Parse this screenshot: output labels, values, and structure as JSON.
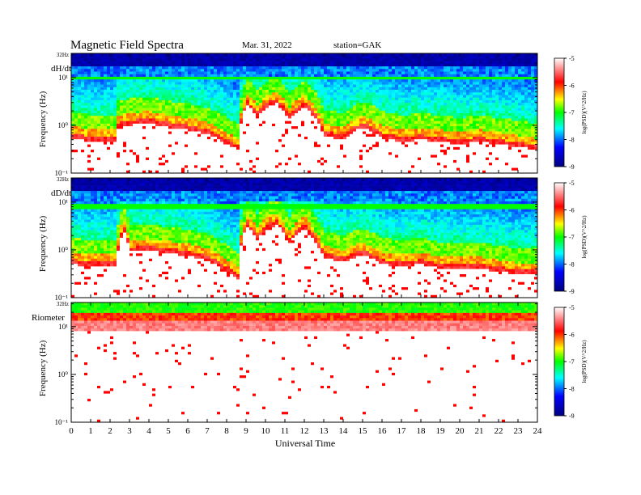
{
  "header": {
    "title": "Magnetic  Field  Spectra",
    "date": "Mar. 31, 2022",
    "station": "station=GAK"
  },
  "colors": {
    "scale_bottom": "#00007f",
    "scale_mid_low": "#00ffff",
    "scale_mid": "#00ff00",
    "scale_mid_high": "#ffff00",
    "scale_high": "#ff0000",
    "scale_top": "#ffffff",
    "frame": "#000000"
  },
  "chart_data": {
    "type": "heatmap",
    "xlabel": "Universal Time",
    "x_ticks": [
      "0",
      "1",
      "2",
      "3",
      "4",
      "5",
      "6",
      "7",
      "8",
      "9",
      "10",
      "11",
      "12",
      "13",
      "14",
      "15",
      "16",
      "17",
      "18",
      "19",
      "20",
      "21",
      "22",
      "23",
      "24"
    ],
    "xlim": [
      0,
      24
    ],
    "colorbar": {
      "label": "log(PSD)(V^2/Hz)",
      "ticks": [
        "-5",
        "-6",
        "-7",
        "-8",
        "-9"
      ],
      "range": [
        -9,
        -5
      ]
    },
    "panels": [
      {
        "name": "dH/dt",
        "ylabel": "Frequency  (Hz)",
        "top_label": "32Hz",
        "y_ticks": [
          "10¹",
          "10⁰",
          "10⁻¹"
        ],
        "ylim_hz": [
          0.1,
          32
        ],
        "noise_line_hz": 10,
        "noise_cutoff": [
          [
            0,
            0.55
          ],
          [
            1,
            0.45
          ],
          [
            2.3,
            0.45
          ],
          [
            2.4,
            0.9
          ],
          [
            3,
            1.0
          ],
          [
            4,
            1.1
          ],
          [
            5,
            0.9
          ],
          [
            6,
            0.8
          ],
          [
            7,
            0.65
          ],
          [
            8,
            0.4
          ],
          [
            8.6,
            0.3
          ],
          [
            9.05,
            2.6
          ],
          [
            9.6,
            1.5
          ],
          [
            10.2,
            2.5
          ],
          [
            10.6,
            2.8
          ],
          [
            11.2,
            1.3
          ],
          [
            12,
            2.4
          ],
          [
            12.5,
            1.5
          ],
          [
            13,
            0.6
          ],
          [
            14,
            0.5
          ],
          [
            15,
            0.9
          ],
          [
            16,
            0.55
          ],
          [
            17,
            0.45
          ],
          [
            18,
            0.5
          ],
          [
            19,
            0.45
          ],
          [
            20,
            0.4
          ],
          [
            21,
            0.45
          ],
          [
            22,
            0.4
          ],
          [
            23,
            0.35
          ],
          [
            24,
            0.3
          ]
        ]
      },
      {
        "name": "dD/dt",
        "ylabel": "Frequency  (Hz)",
        "top_label": "32Hz",
        "y_ticks": [
          "10¹",
          "10⁰",
          "10⁻¹"
        ],
        "ylim_hz": [
          0.1,
          32
        ],
        "noise_line_hz": 8,
        "noise_cutoff": [
          [
            0,
            0.5
          ],
          [
            1,
            0.45
          ],
          [
            2.3,
            0.45
          ],
          [
            2.4,
            0.9
          ],
          [
            2.7,
            2.5
          ],
          [
            3,
            0.9
          ],
          [
            4,
            0.95
          ],
          [
            5,
            0.85
          ],
          [
            6,
            0.75
          ],
          [
            7,
            0.6
          ],
          [
            8,
            0.35
          ],
          [
            8.6,
            0.25
          ],
          [
            9.05,
            3.0
          ],
          [
            9.6,
            1.6
          ],
          [
            10.2,
            2.9
          ],
          [
            10.6,
            3.3
          ],
          [
            11.2,
            1.3
          ],
          [
            12,
            2.8
          ],
          [
            12.5,
            1.5
          ],
          [
            13,
            0.7
          ],
          [
            14,
            0.55
          ],
          [
            15,
            0.8
          ],
          [
            16,
            0.5
          ],
          [
            17,
            0.45
          ],
          [
            18,
            0.5
          ],
          [
            19,
            0.4
          ],
          [
            20,
            0.4
          ],
          [
            21,
            0.4
          ],
          [
            22,
            0.35
          ],
          [
            23,
            0.3
          ],
          [
            24,
            0.3
          ]
        ]
      },
      {
        "name": "Riometer",
        "ylabel": "Frequency  (Hz)",
        "top_label": "32Hz",
        "y_ticks": [
          "10¹",
          "10⁰",
          "10⁻¹"
        ],
        "ylim_hz": [
          0.1,
          32
        ],
        "noise_line_hz": 20,
        "noise_cutoff": [
          [
            0,
            12
          ],
          [
            24,
            12
          ]
        ]
      }
    ]
  }
}
